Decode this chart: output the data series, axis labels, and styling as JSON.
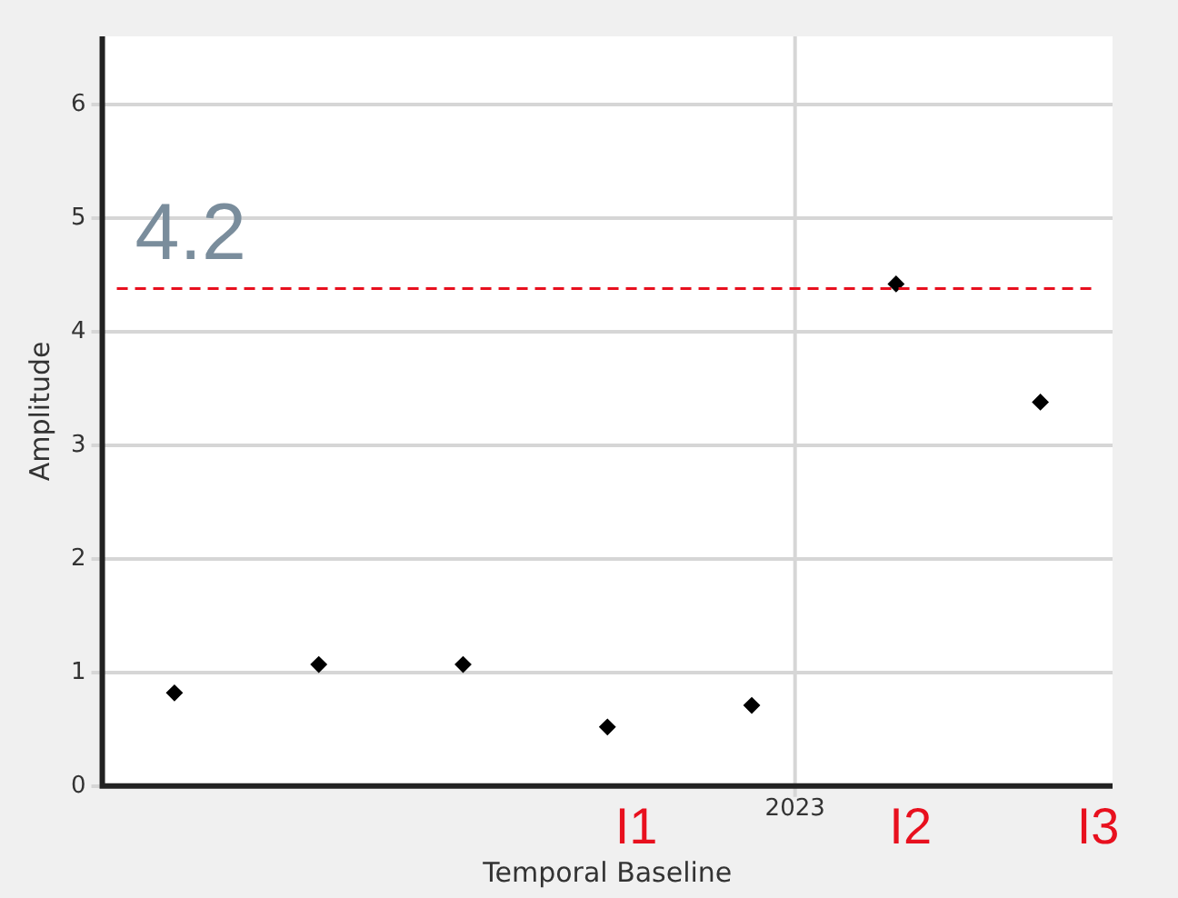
{
  "chart_data": {
    "type": "scatter",
    "xlabel": "Temporal Baseline",
    "ylabel": "Amplitude",
    "categories": [
      null,
      null,
      null,
      null,
      null,
      null,
      null
    ],
    "values": [
      0.82,
      1.07,
      1.07,
      0.52,
      0.71,
      4.42,
      3.38
    ],
    "color": "#000000",
    "marker": "diamond",
    "ylim": [
      0,
      6.6
    ],
    "yticks": [
      0,
      1,
      2,
      3,
      4,
      5,
      6
    ],
    "grid": true,
    "legend": false,
    "ref_lines": [
      {
        "axis": "y",
        "value": 4.38,
        "color": "#e8101e",
        "line_style": "dashed"
      }
    ],
    "annotations": [
      "4.2",
      "2023",
      "I1",
      "I2",
      "I3"
    ]
  }
}
